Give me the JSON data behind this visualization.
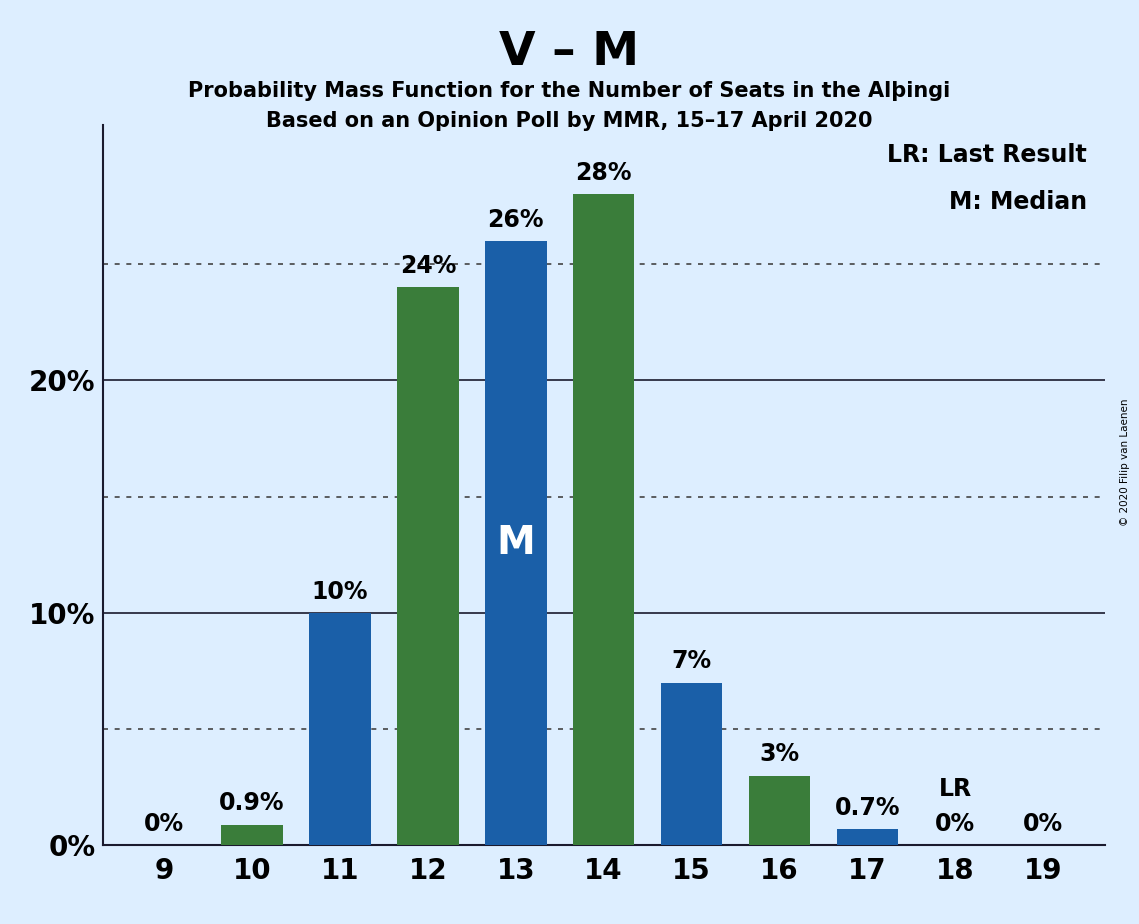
{
  "title": "V – M",
  "subtitle1_text": "Probability Mass Function for the Number of Seats in the Alþingi",
  "subtitle2_text": "Based on an Opinion Poll by MMR, 15–17 April 2020",
  "x_seats": [
    9,
    10,
    11,
    12,
    13,
    14,
    15,
    16,
    17,
    18,
    19
  ],
  "bar_values": [
    0.0,
    0.9,
    10.0,
    24.0,
    26.0,
    28.0,
    7.0,
    3.0,
    0.7,
    0.0,
    0.0
  ],
  "bar_colors": [
    "#1a5fa8",
    "#3a7d3a",
    "#1a5fa8",
    "#3a7d3a",
    "#1a5fa8",
    "#3a7d3a",
    "#1a5fa8",
    "#3a7d3a",
    "#1a5fa8",
    "#3a7d3a",
    "#1a5fa8"
  ],
  "bar_labels": [
    "0%",
    "0.9%",
    "10%",
    "24%",
    "26%",
    "28%",
    "7%",
    "3%",
    "0.7%",
    "0%",
    "0%"
  ],
  "label_positions": [
    "left",
    "left",
    "left",
    "left",
    "left",
    "left",
    "left",
    "left",
    "left",
    "right",
    "right"
  ],
  "median_seat_index": 4,
  "lr_seat_index": 9,
  "blue_color": "#1a5fa8",
  "green_color": "#3a7d3a",
  "background_color": "#ddeeff",
  "ylim": [
    0,
    31
  ],
  "solid_line_values": [
    10,
    20
  ],
  "dotted_line_values": [
    5,
    15,
    25
  ],
  "ytick_positions": [
    0,
    10,
    20
  ],
  "ytick_labels": [
    "0%",
    "10%",
    "20%"
  ],
  "legend_text1": "LR: Last Result",
  "legend_text2": "M: Median",
  "watermark": "© 2020 Filip van Laenen",
  "bar_width": 0.7,
  "title_fontsize": 34,
  "subtitle_fontsize": 15,
  "axis_label_fontsize": 20,
  "bar_label_fontsize": 17,
  "median_label": "M",
  "median_label_fontsize": 28
}
